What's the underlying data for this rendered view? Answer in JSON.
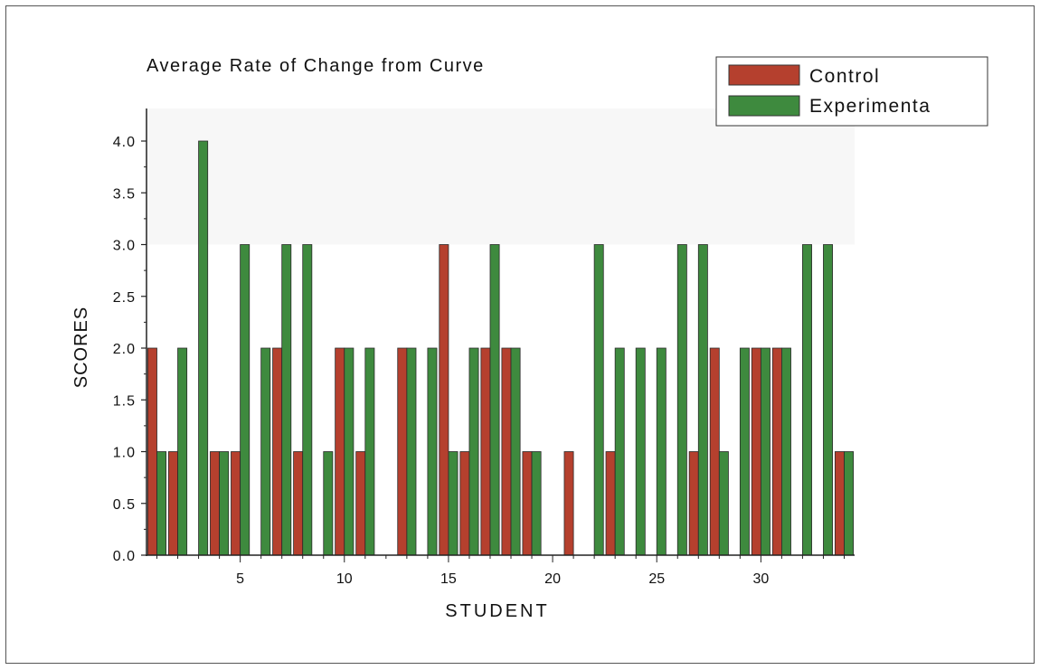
{
  "chart_data": {
    "type": "bar",
    "title": "Average Rate of Change from Curve",
    "xlabel": "STUDENT",
    "ylabel": "SCORES",
    "ylim": [
      0,
      4.2
    ],
    "xlim": [
      0.5,
      34.5
    ],
    "y_ticks": [
      "0.0",
      "0.5",
      "1.0",
      "1.5",
      "2.0",
      "2.5",
      "3.0",
      "3.5",
      "4.0"
    ],
    "x_ticks": [
      "5",
      "10",
      "15",
      "20",
      "25",
      "30"
    ],
    "grid": false,
    "legend_position": "top-right",
    "x": [
      1,
      2,
      3,
      4,
      5,
      6,
      7,
      8,
      9,
      10,
      11,
      12,
      13,
      14,
      15,
      16,
      17,
      18,
      19,
      20,
      21,
      22,
      23,
      24,
      25,
      26,
      27,
      28,
      29,
      30,
      31,
      32,
      33,
      34
    ],
    "series": [
      {
        "name": "Control",
        "color": "#b5402e",
        "values": [
          2,
          1,
          0,
          1,
          1,
          0,
          2,
          1,
          0,
          2,
          1,
          0,
          2,
          0,
          3,
          1,
          2,
          2,
          1,
          0,
          1,
          0,
          1,
          0,
          0,
          0,
          1,
          2,
          0,
          2,
          2,
          0,
          0,
          1
        ]
      },
      {
        "name": "Experimenta",
        "color": "#3e8a3e",
        "values": [
          1,
          2,
          4,
          1,
          3,
          2,
          3,
          3,
          1,
          2,
          2,
          0,
          2,
          2,
          1,
          2,
          3,
          2,
          1,
          0,
          0,
          3,
          2,
          2,
          2,
          3,
          3,
          1,
          2,
          2,
          2,
          3,
          3,
          1
        ]
      }
    ]
  }
}
